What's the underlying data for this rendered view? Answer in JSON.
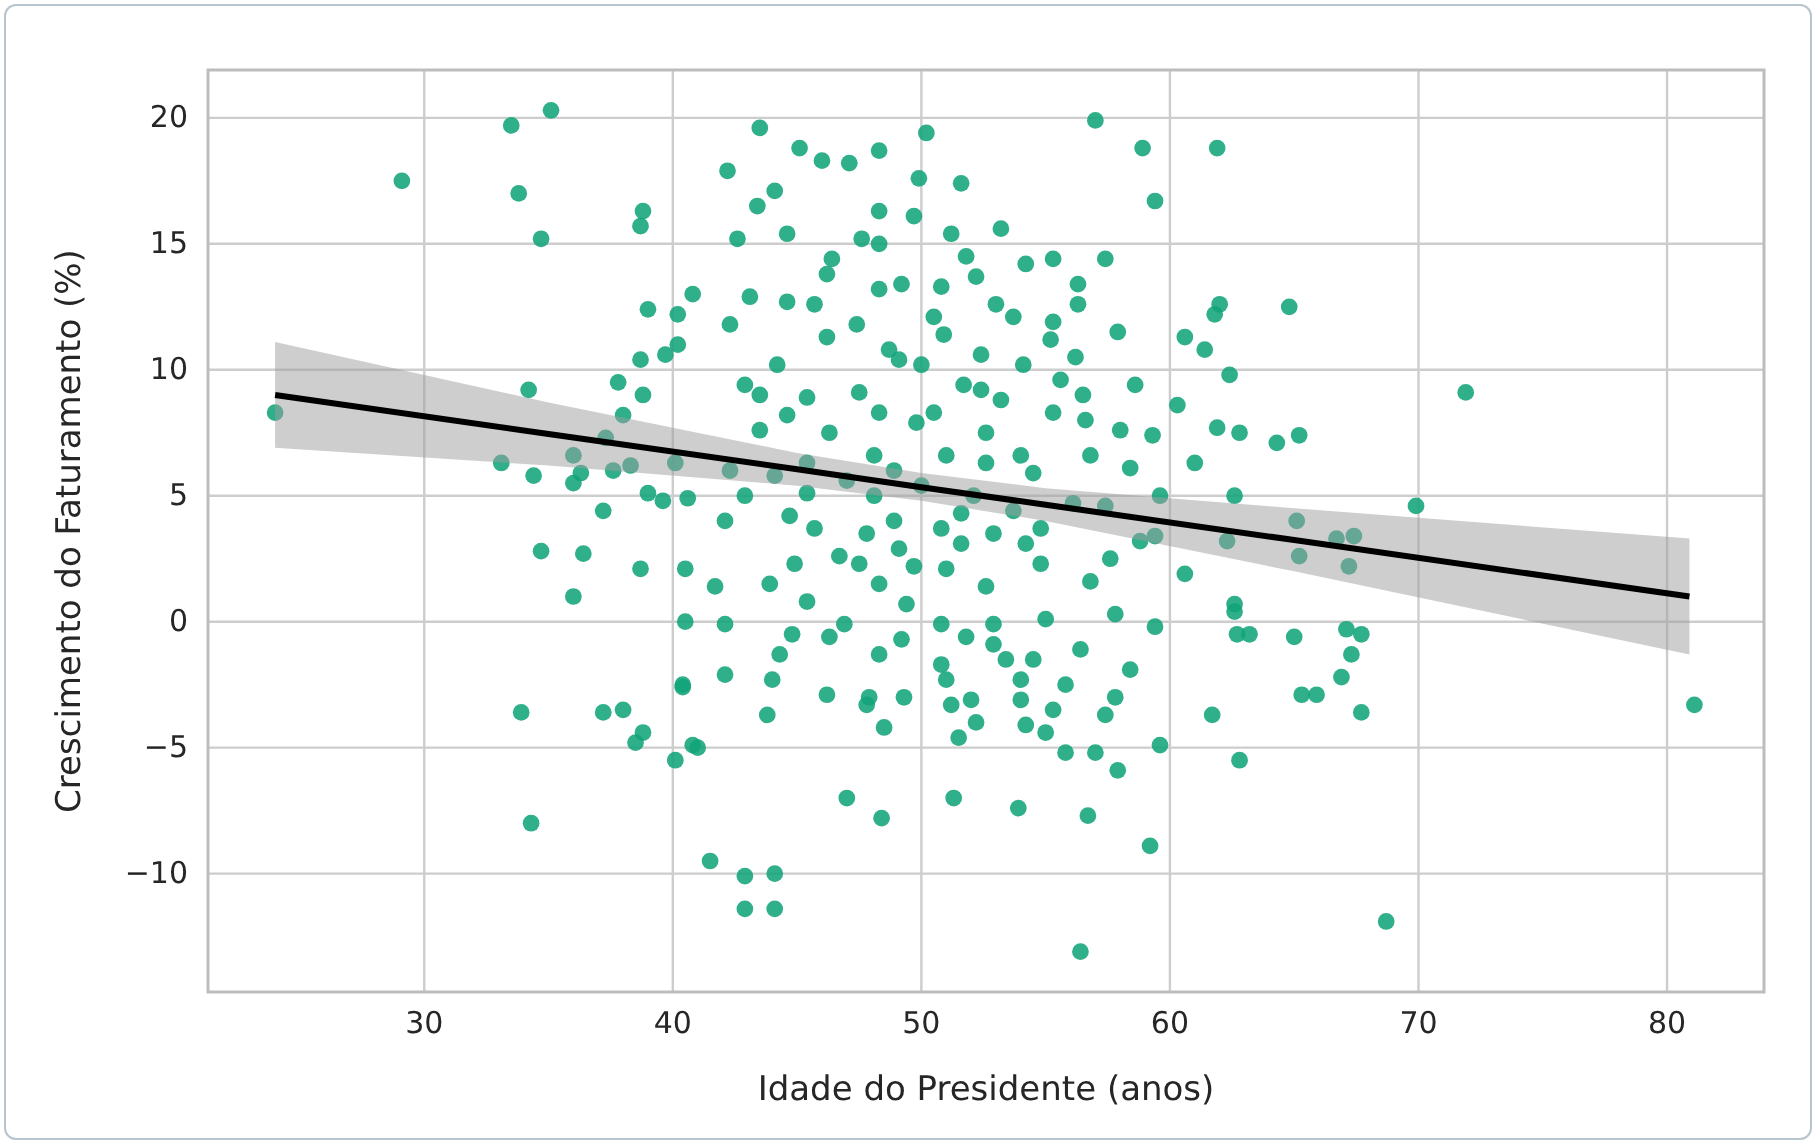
{
  "chart_data": {
    "type": "scatter",
    "xlabel": "Idade do Presidente (anos)",
    "ylabel": "Crescimento do Faturamento (%)",
    "xlim": [
      21.3,
      83.9
    ],
    "ylim": [
      -14.7,
      21.9
    ],
    "xticks": [
      30,
      40,
      50,
      60,
      70,
      80
    ],
    "yticks": [
      -10,
      -5,
      0,
      5,
      10,
      15,
      20
    ],
    "grid": true,
    "series": [
      {
        "color": "#12a47a",
        "marker": "circle",
        "x": [
          24.0,
          29.1,
          33.5,
          35.1,
          33.8,
          34.7,
          34.2,
          33.1,
          33.9,
          34.3,
          34.7,
          36.0,
          36.4,
          36.0,
          37.2,
          38.0,
          38.5,
          38.8,
          38.7,
          38.7,
          38.8,
          41.5,
          44.1,
          42.9,
          40.1,
          41.0,
          40.4,
          43.5,
          57.0,
          58.9,
          61.9,
          50.2,
          45.1,
          46.0,
          47.1,
          48.3,
          42.2,
          44.1,
          49.9,
          51.6,
          59.4,
          43.4,
          48.3,
          49.7,
          44.6,
          51.2,
          53.2,
          47.6,
          48.3,
          42.6,
          46.4,
          46.2,
          51.8,
          52.2,
          54.2,
          55.3,
          57.4,
          56.3,
          49.2,
          50.8,
          48.3,
          43.1,
          44.6,
          45.7,
          53.0,
          56.3,
          42.3,
          47.4,
          50.5,
          53.7,
          55.3,
          57.9,
          46.2,
          50.9,
          55.2,
          60.6,
          61.8,
          62.0,
          48.7,
          52.4,
          56.2,
          61.4,
          44.2,
          49.1,
          50.0,
          54.1,
          62.4,
          42.9,
          47.5,
          51.7,
          55.6,
          58.6,
          45.4,
          52.4,
          53.2,
          56.5,
          60.3,
          44.6,
          43.5,
          48.3,
          50.5,
          55.3,
          46.3,
          49.8,
          52.6,
          56.6,
          58.0,
          61.9,
          59.3,
          43.5,
          48.1,
          51.0,
          54.0,
          56.8,
          61.0,
          45.4,
          42.3,
          48.9,
          52.6,
          58.4,
          44.1,
          47.0,
          50.0,
          54.5,
          57.4,
          59.6,
          62.6,
          42.9,
          45.4,
          48.1,
          52.1,
          56.1,
          42.1,
          44.7,
          48.9,
          51.6,
          53.7,
          45.7,
          47.8,
          50.8,
          52.9,
          54.8,
          59.4,
          62.3,
          46.7,
          49.1,
          51.6,
          54.2,
          58.8,
          44.9,
          47.5,
          49.7,
          51.0,
          54.8,
          57.6,
          60.6,
          48.3,
          52.6,
          56.8,
          43.9,
          45.4,
          49.4,
          50.8,
          52.9,
          55.0,
          57.8,
          59.4,
          46.9,
          42.1,
          44.8,
          46.3,
          49.2,
          51.8,
          56.4,
          52.9,
          44.3,
          53.4,
          54.5,
          42.1,
          48.3,
          50.8,
          58.4,
          44.0,
          51.0,
          54.0,
          55.8,
          46.2,
          47.9,
          49.3,
          52.0,
          54.0,
          57.8,
          47.8,
          51.2,
          55.3,
          43.8,
          57.4,
          61.7,
          48.5,
          52.2,
          54.2,
          55.0,
          51.5,
          55.8,
          57.0,
          57.9,
          59.6,
          47.0,
          48.4,
          51.3,
          53.9,
          56.7,
          59.2,
          44.1,
          42.9,
          56.4,
          64.8,
          71.9,
          62.8,
          64.3,
          65.2,
          69.9,
          65.1,
          67.4,
          66.7,
          65.2,
          67.2,
          62.6,
          62.6,
          62.7,
          63.2,
          65.0,
          67.1,
          67.7,
          67.3,
          66.9,
          65.3,
          65.9,
          67.7,
          62.8,
          68.7,
          81.1,
          34.4,
          36.0,
          36.3,
          37.3,
          38.0,
          37.8,
          38.8,
          39.0,
          38.7,
          39.7,
          40.8,
          40.2,
          40.2,
          39.0,
          39.6,
          40.6,
          38.3,
          37.6,
          40.1,
          37.2,
          40.5,
          41.7,
          40.5,
          40.4,
          40.8
        ],
        "values": [
          8.3,
          17.5,
          19.7,
          20.3,
          17.0,
          15.2,
          9.2,
          6.3,
          -3.6,
          -8.0,
          2.8,
          5.5,
          2.7,
          1.0,
          -3.6,
          -3.5,
          -4.8,
          -4.4,
          2.1,
          15.7,
          16.3,
          -9.5,
          -11.4,
          -10.1,
          -5.5,
          -5.0,
          -2.6,
          19.6,
          19.9,
          18.8,
          18.8,
          19.4,
          18.8,
          18.3,
          18.2,
          18.7,
          17.9,
          17.1,
          17.6,
          17.4,
          16.7,
          16.5,
          16.3,
          16.1,
          15.4,
          15.4,
          15.6,
          15.2,
          15.0,
          15.2,
          14.4,
          13.8,
          14.5,
          13.7,
          14.2,
          14.4,
          14.4,
          13.4,
          13.4,
          13.3,
          13.2,
          12.9,
          12.7,
          12.6,
          12.6,
          12.6,
          11.8,
          11.8,
          12.1,
          12.1,
          11.9,
          11.5,
          11.3,
          11.4,
          11.2,
          11.3,
          12.2,
          12.6,
          10.8,
          10.6,
          10.5,
          10.8,
          10.2,
          10.4,
          10.2,
          10.2,
          9.8,
          9.4,
          9.1,
          9.4,
          9.6,
          9.4,
          8.9,
          9.2,
          8.8,
          9.0,
          8.6,
          8.2,
          9.0,
          8.3,
          8.3,
          8.3,
          7.5,
          7.9,
          7.5,
          8.0,
          7.6,
          7.7,
          7.4,
          7.6,
          6.6,
          6.6,
          6.6,
          6.6,
          6.3,
          6.3,
          6.0,
          6.0,
          6.3,
          6.1,
          5.8,
          5.6,
          5.4,
          5.9,
          4.6,
          5.0,
          5.0,
          5.0,
          5.1,
          5.0,
          5.0,
          4.7,
          4.0,
          4.2,
          4.0,
          4.3,
          4.4,
          3.7,
          3.5,
          3.7,
          3.5,
          3.7,
          3.4,
          3.2,
          2.6,
          2.9,
          3.1,
          3.1,
          3.2,
          2.3,
          2.3,
          2.2,
          2.1,
          2.3,
          2.5,
          1.9,
          1.5,
          1.4,
          1.6,
          1.5,
          0.8,
          0.7,
          -0.1,
          -0.1,
          0.1,
          0.3,
          -0.2,
          -0.1,
          -0.1,
          -0.5,
          -0.6,
          -0.7,
          -0.6,
          -1.1,
          -0.9,
          -1.3,
          -1.5,
          -1.5,
          -2.1,
          -1.3,
          -1.7,
          -1.9,
          -2.3,
          -2.3,
          -2.3,
          -2.5,
          -2.9,
          -3.0,
          -3.0,
          -3.1,
          -3.1,
          -3.0,
          -3.3,
          -3.3,
          -3.5,
          -3.7,
          -3.7,
          -3.7,
          -4.2,
          -4.0,
          -4.1,
          -4.4,
          -4.6,
          -5.2,
          -5.2,
          -5.9,
          -4.9,
          -7.0,
          -7.8,
          -7.0,
          -7.4,
          -7.7,
          -8.9,
          -10.0,
          -11.4,
          -13.1,
          12.5,
          9.1,
          7.5,
          7.1,
          7.4,
          4.6,
          4.0,
          3.4,
          3.3,
          2.6,
          2.2,
          0.7,
          0.4,
          -0.5,
          -0.5,
          -0.6,
          -0.3,
          -0.5,
          -1.3,
          -2.2,
          -2.9,
          -2.9,
          -3.6,
          -5.5,
          -11.9,
          -3.3,
          5.8,
          6.6,
          5.9,
          7.3,
          8.2,
          9.5,
          9.0,
          12.4,
          10.4,
          10.6,
          13.0,
          12.2,
          11.0,
          5.1,
          4.8,
          4.9,
          6.2,
          6.0,
          6.3,
          4.4,
          2.1,
          1.4,
          0.0,
          -2.5,
          -4.9
        ]
      },
      {
        "type": "line",
        "color": "#000000",
        "line_style": "solid",
        "marker": "none",
        "x": [
          24,
          35,
          45,
          50,
          55,
          65,
          80.9
        ],
        "values": [
          9.0,
          7.45,
          6.05,
          5.34,
          4.64,
          3.24,
          1.0
        ],
        "lower": [
          6.9,
          6.2,
          5.4,
          4.8,
          4.0,
          2.0,
          -1.3
        ],
        "upper": [
          11.1,
          8.7,
          6.7,
          5.9,
          5.3,
          4.5,
          3.3
        ]
      }
    ]
  }
}
